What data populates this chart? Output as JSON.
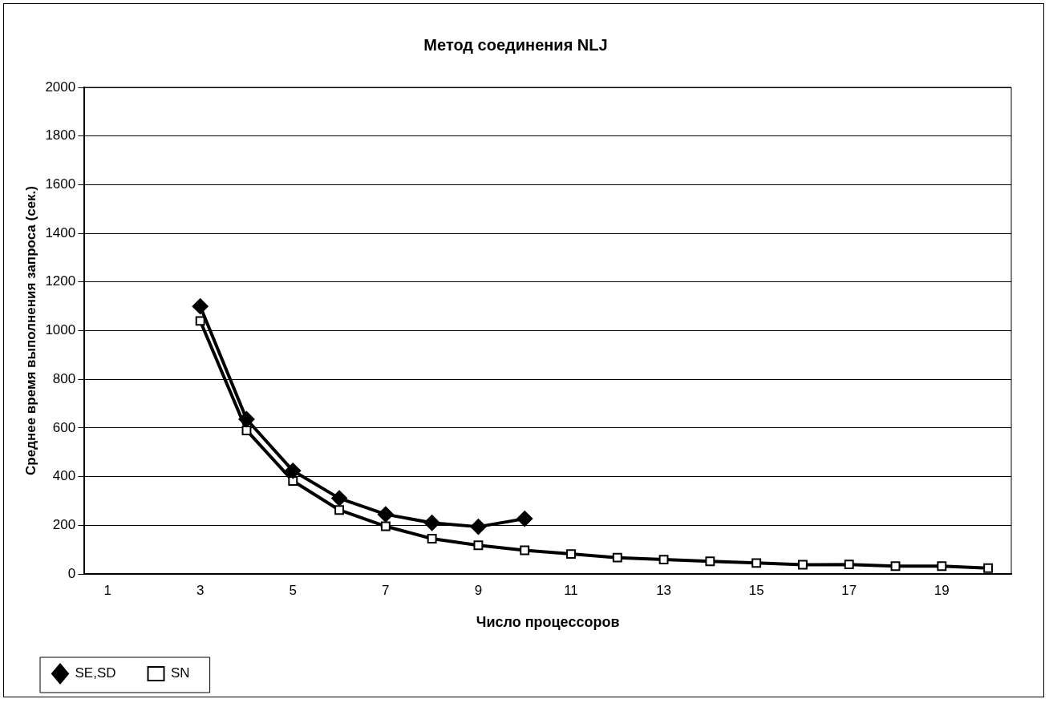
{
  "chart_data": {
    "type": "line",
    "title": "Метод соединения NLJ",
    "xlabel": "Число процессоров",
    "ylabel": "Среднее время выполнения запроса (сек.)",
    "categories": [
      "1",
      null,
      "3",
      null,
      "5",
      null,
      "7",
      null,
      "9",
      null,
      "11",
      null,
      "13",
      null,
      "15",
      null,
      "17",
      null,
      "19",
      null
    ],
    "series": [
      {
        "name": "SE,SD",
        "color": "#000000",
        "marker": "diamond",
        "values": [
          null,
          null,
          1100,
          636,
          424,
          311,
          245,
          210,
          194,
          227,
          null,
          null,
          null,
          null,
          null,
          null,
          null,
          null,
          null,
          null
        ]
      },
      {
        "name": "SN",
        "color": "#000000",
        "marker": "square",
        "values": [
          null,
          null,
          1040,
          590,
          382,
          263,
          196,
          145,
          118,
          97,
          82,
          67,
          59,
          52,
          45,
          38,
          39,
          32,
          32,
          24
        ]
      }
    ],
    "ylim": [
      0,
      2000
    ],
    "yticks": [
      0,
      200,
      400,
      600,
      800,
      1000,
      1200,
      1400,
      1600,
      1800,
      2000
    ],
    "grid": "y",
    "legend": "bottom left",
    "line_style": "solid"
  }
}
